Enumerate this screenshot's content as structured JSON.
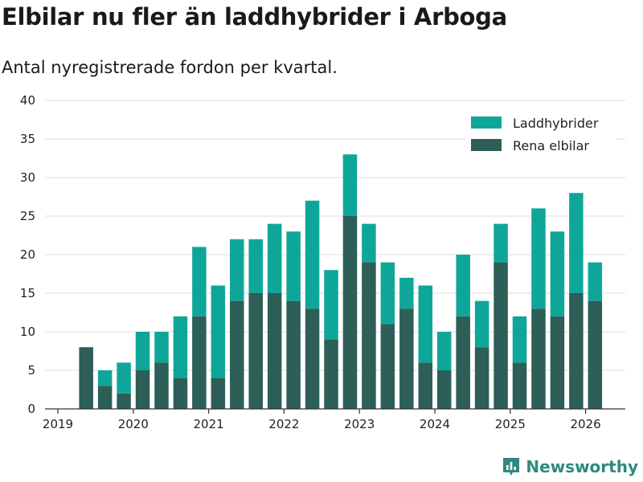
{
  "chart_data": {
    "type": "bar",
    "stacked": true,
    "title": "Elbilar nu fler än laddhybrider i Arboga",
    "subtitle": "Antal nyregistrerade fordon per kvartal.",
    "xlabel": "",
    "ylabel": "",
    "ylim": [
      0,
      40
    ],
    "yticks": [
      0,
      5,
      10,
      15,
      20,
      25,
      30,
      35,
      40
    ],
    "xticks": [
      "2019",
      "2020",
      "2021",
      "2022",
      "2023",
      "2024",
      "2025",
      "2026"
    ],
    "grid": true,
    "legend_position": "top-right",
    "categories": [
      "2019-Q2",
      "2019-Q3",
      "2019-Q4",
      "2020-Q1",
      "2020-Q2",
      "2020-Q3",
      "2020-Q4",
      "2021-Q1",
      "2021-Q2",
      "2021-Q3",
      "2021-Q4",
      "2022-Q1",
      "2022-Q2",
      "2022-Q3",
      "2022-Q4",
      "2023-Q1",
      "2023-Q2",
      "2023-Q3",
      "2023-Q4",
      "2024-Q1",
      "2024-Q2",
      "2024-Q3",
      "2024-Q4",
      "2025-Q1",
      "2025-Q2",
      "2025-Q3",
      "2025-Q4",
      "2026-Q1"
    ],
    "series": [
      {
        "name": "Rena elbilar",
        "color": "#2d5e57",
        "values": [
          8,
          3,
          2,
          5,
          6,
          4,
          12,
          4,
          14,
          15,
          15,
          14,
          13,
          9,
          25,
          19,
          11,
          13,
          6,
          5,
          12,
          8,
          19,
          6,
          13,
          12,
          15,
          14
        ]
      },
      {
        "name": "Laddhybrider",
        "color": "#0fa69a",
        "values": [
          0,
          2,
          4,
          5,
          4,
          8,
          9,
          12,
          8,
          7,
          9,
          9,
          14,
          9,
          8,
          5,
          8,
          4,
          10,
          5,
          8,
          6,
          5,
          6,
          13,
          11,
          13,
          5
        ]
      }
    ],
    "legend_order": [
      "Laddhybrider",
      "Rena elbilar"
    ]
  },
  "branding": {
    "logo_text": "Newsworthy",
    "logo_icon": "newsworthy-bar-chart-icon",
    "color": "#2f8a7c"
  }
}
